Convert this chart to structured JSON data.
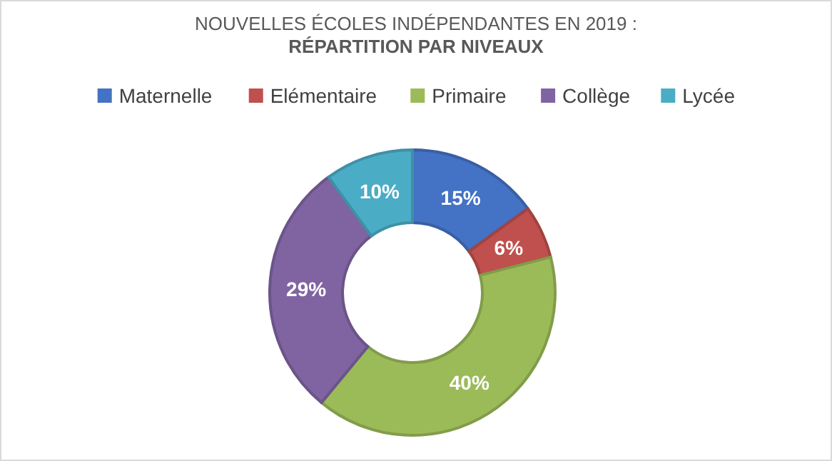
{
  "chart_data": {
    "type": "donut",
    "title": "NOUVELLES ÉCOLES INDÉPENDANTES EN 2019 :",
    "subtitle": "RÉPARTITION PAR NIVEAUX",
    "categories": [
      "Maternelle",
      "Elémentaire",
      "Primaire",
      "Collège",
      "Lycée"
    ],
    "values": [
      15,
      6,
      40,
      29,
      10
    ],
    "colors": [
      "#4472c4",
      "#c0504d",
      "#9bbb59",
      "#8064a2",
      "#4bacc6"
    ],
    "value_labels": [
      "15%",
      "6%",
      "40%",
      "29%",
      "10%"
    ],
    "legend": "top"
  }
}
